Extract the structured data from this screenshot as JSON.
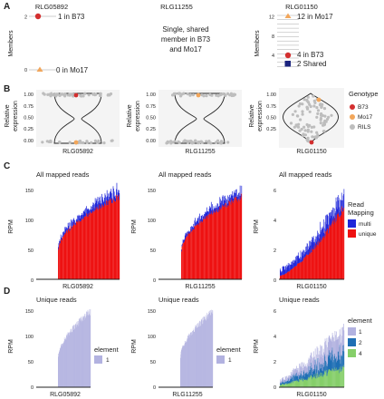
{
  "panels": {
    "A": {
      "label": "A"
    },
    "B": {
      "label": "B"
    },
    "C": {
      "label": "C"
    },
    "D": {
      "label": "D"
    }
  },
  "genes": [
    "RLG05892",
    "RLG11255",
    "RLG01150"
  ],
  "colors": {
    "b73": "#d32f2f",
    "mo17": "#f2a65a",
    "rils": "#bdbdbd",
    "multi": "#1f26d9",
    "unique": "#ee1111",
    "el1": "#b2b2e0",
    "el2": "#1f6fb4",
    "el4": "#86cf6a"
  },
  "panel_a": {
    "ylabel": "Members",
    "left": {
      "gene": "RLG05892",
      "b73_annotation": "1 in B73",
      "mo17_annotation": "0 in Mo17",
      "ticks": [
        "2",
        "0"
      ]
    },
    "middle": {
      "gene": "RLG11255",
      "text_lines": [
        "Single, shared",
        "member in B73",
        "and Mo17"
      ]
    },
    "right": {
      "gene": "RLG01150",
      "ticks": [
        "12",
        "8",
        "4"
      ],
      "mo17_annotation": "12 in Mo17",
      "b73_annotation": "4 in B73",
      "shared_annotation": "2 Shared"
    }
  },
  "panel_b": {
    "ylabel_lines": [
      "Relative",
      "expression"
    ],
    "legend": {
      "title": "Genotype",
      "items": [
        {
          "label": "B73",
          "color_key": "b73"
        },
        {
          "label": "Mo17",
          "color_key": "mo17"
        },
        {
          "label": "RILS",
          "color_key": "rils"
        }
      ]
    },
    "ticks_left": [
      "1.00",
      "0.75",
      "0.50",
      "0.25",
      "0.00"
    ],
    "ticks_right": [
      "1.00",
      "0.75",
      "0.50",
      "0.25"
    ]
  },
  "panel_c": {
    "titles": [
      "All mapped reads",
      "All mapped reads",
      "All mapped reads"
    ],
    "ylabel": "RPM",
    "ticks_left": [
      "150",
      "100",
      "50",
      "0"
    ],
    "ticks_right": [
      "6",
      "4",
      "2",
      "0"
    ],
    "legend": {
      "title_lines": [
        "Read",
        "Mapping"
      ],
      "items": [
        {
          "label": "multi",
          "color_key": "multi"
        },
        {
          "label": "unique",
          "color_key": "unique"
        }
      ]
    }
  },
  "panel_d": {
    "titles": [
      "Unique reads",
      "Unique reads",
      "Unique reads"
    ],
    "ylabel": "RPM",
    "ticks_left": [
      "150",
      "100",
      "50",
      "0"
    ],
    "ticks_right": [
      "6",
      "4",
      "2",
      "0"
    ],
    "legend_small": {
      "title": "element",
      "items": [
        "1"
      ]
    },
    "legend_right": {
      "title": "element",
      "items": [
        {
          "label": "1",
          "color_key": "el1"
        },
        {
          "label": "2",
          "color_key": "el2"
        },
        {
          "label": "4",
          "color_key": "el4"
        }
      ]
    }
  },
  "chart_data": [
    {
      "type": "scatter",
      "panel": "A",
      "series": [
        {
          "name": "B73",
          "subplot": "RLG05892",
          "members": 1
        },
        {
          "name": "Mo17",
          "subplot": "RLG05892",
          "members": 0
        },
        {
          "name": "Mo17",
          "subplot": "RLG01150",
          "members": 12
        },
        {
          "name": "B73",
          "subplot": "RLG01150",
          "members": 4
        },
        {
          "name": "Shared",
          "subplot": "RLG01150",
          "members": 2
        }
      ],
      "ylabel": "Members"
    },
    {
      "type": "scatter",
      "panel": "B",
      "subplots": [
        "RLG05892",
        "RLG11255",
        "RLG01150"
      ],
      "ylabel": "Relative expression",
      "ylim": [
        0,
        1
      ],
      "series": [
        {
          "name": "B73",
          "values": [
            0.97,
            null,
            0.02
          ]
        },
        {
          "name": "Mo17",
          "values": [
            0.02,
            0.97,
            0.88
          ]
        }
      ],
      "legend_placement": "right"
    },
    {
      "type": "bar",
      "panel": "C",
      "subplots": [
        "RLG05892",
        "RLG11255",
        "RLG01150"
      ],
      "ylabel": "RPM",
      "ylims": [
        [
          0,
          185
        ],
        [
          0,
          185
        ],
        [
          0,
          6.5
        ]
      ],
      "series": [
        {
          "name": "unique",
          "approx_max": [
            150,
            150,
            4.8
          ]
        },
        {
          "name": "multi",
          "approx_max": [
            175,
            175,
            5.9
          ]
        }
      ],
      "legend_placement": "right"
    },
    {
      "type": "bar",
      "panel": "D",
      "subplots": [
        "RLG05892",
        "RLG11255",
        "RLG01150"
      ],
      "ylabel": "RPM",
      "ylims": [
        [
          0,
          185
        ],
        [
          0,
          185
        ],
        [
          0,
          6.5
        ]
      ],
      "series": [
        {
          "name": "1",
          "approx_max": [
            165,
            165,
            5.3
          ]
        },
        {
          "name": "2",
          "approx_max": [
            null,
            null,
            2.3
          ]
        },
        {
          "name": "4",
          "approx_max": [
            null,
            null,
            1.3
          ]
        }
      ]
    }
  ]
}
